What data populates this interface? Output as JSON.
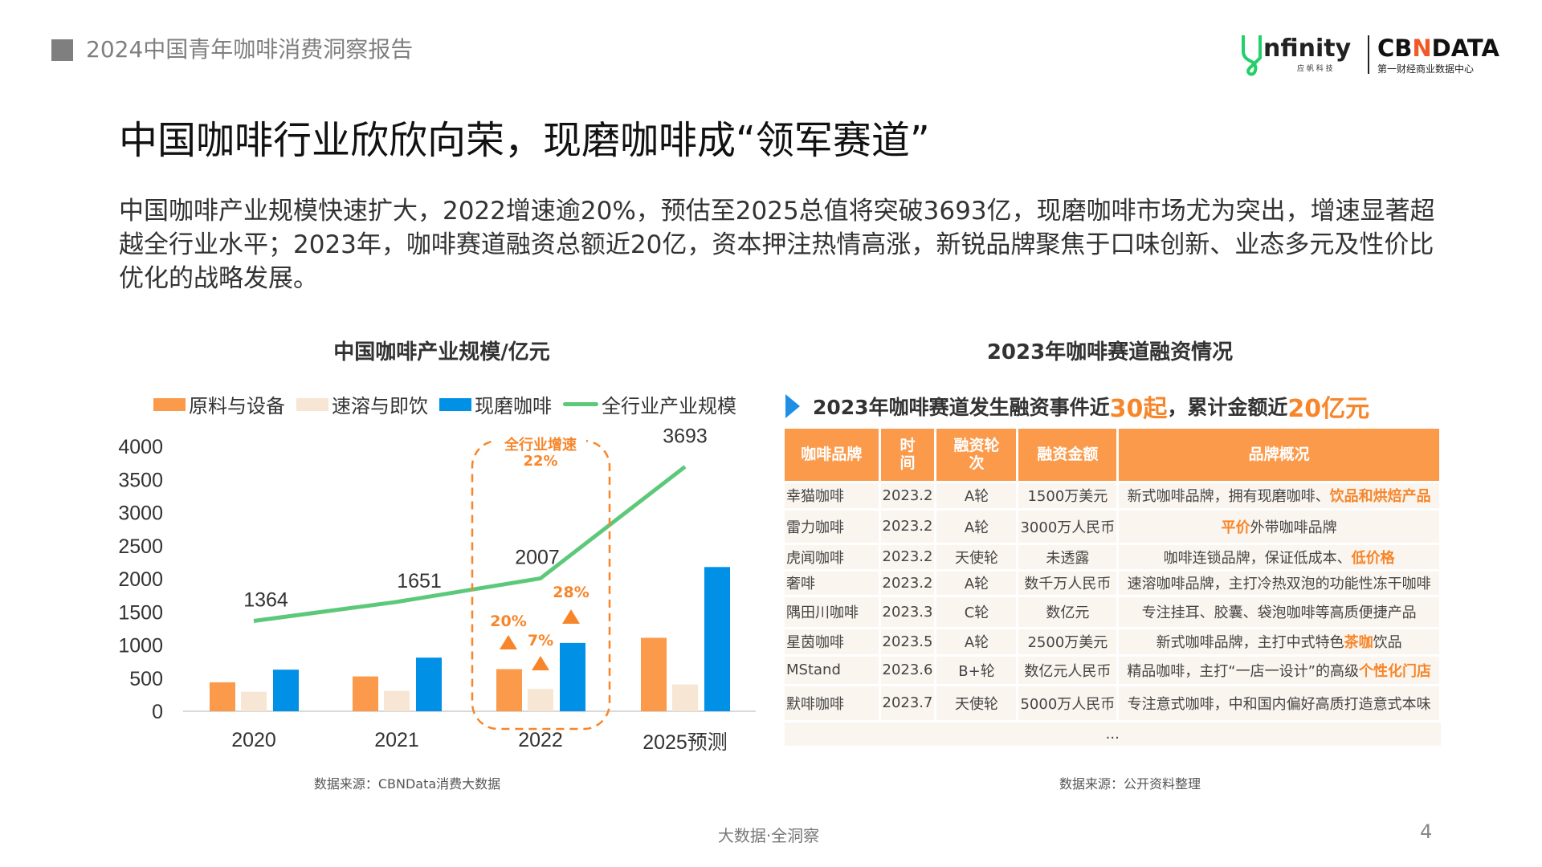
{
  "header": {
    "report_title": "2024中国青年咖啡消费洞察报告"
  },
  "logos": {
    "infinity": "infinity",
    "infinity_cn": "应 帆 科 技",
    "cbndata": "CBNDATA",
    "cbndata_cn": "第一财经商业数据中心"
  },
  "title": "中国咖啡行业欣欣向荣，现磨咖啡成“领军赛道”",
  "paragraph": "中国咖啡产业规模快速扩大，2022增速逾20%，预估至2025总值将突破3693亿，现磨咖啡市场尤为突出，增速显著超越全行业水平；2023年，咖啡赛道融资总额近20亿，资本押注热情高涨，新锐品牌聚焦于口味创新、业态多元及性价比优化的战略发展。",
  "chart_data": {
    "type": "bar",
    "title": "中国咖啡产业规模/亿元",
    "categories": [
      "2020",
      "2021",
      "2022",
      "2025预测"
    ],
    "series": [
      {
        "name": "原料与设备",
        "type": "bar",
        "color": "#fb9a4b",
        "values": [
          437,
          526,
          636,
          1109
        ]
      },
      {
        "name": "速溶与即饮",
        "type": "bar",
        "color": "#f7e6d3",
        "values": [
          295,
          308,
          336,
          405
        ]
      },
      {
        "name": "现磨咖啡",
        "type": "bar",
        "color": "#0090e6",
        "values": [
          628,
          810,
          1032,
          2178
        ]
      },
      {
        "name": "全行业产业规模",
        "type": "line",
        "color": "#5cc97a",
        "values": [
          1364,
          1651,
          2007,
          3693
        ],
        "labels": [
          "1364",
          "1651",
          "2007",
          "3693"
        ]
      }
    ],
    "yticks": [
      "0",
      "500",
      "1000",
      "1500",
      "2000",
      "2500",
      "3000",
      "3500",
      "4000"
    ],
    "ylim": [
      0,
      4000
    ],
    "legend": "top",
    "annotations": {
      "highlight_category": "2022",
      "highlight_title": "全行业增速",
      "highlight_value": "22%",
      "growth": [
        {
          "series": "原料与设备",
          "value": "20%"
        },
        {
          "series": "速溶与即饮",
          "value": "7%"
        },
        {
          "series": "现磨咖啡",
          "value": "28%"
        }
      ]
    },
    "source": "数据来源：CBNData消费大数据"
  },
  "right": {
    "title": "2023年咖啡赛道融资情况",
    "summary_pre": "2023年咖啡赛道发生融资事件近",
    "summary_hl1": "30起",
    "summary_mid": "，累计金额近",
    "summary_hl2": "20亿元",
    "headers": [
      "咖啡品牌",
      "时\n间",
      "融资轮\n次",
      "融资金额",
      "品牌概况"
    ],
    "rows": [
      {
        "brand": "幸猫咖啡",
        "time": "2023.2",
        "round": "A轮",
        "amount": "1500万美元",
        "desc": "新式咖啡品牌，拥有现磨咖啡、",
        "hl": "饮品和烘焙产品",
        "post": ""
      },
      {
        "brand": "雷力咖啡",
        "time": "2023.2",
        "round": "A轮",
        "amount": "3000万人民币",
        "desc": "",
        "hl": "平价",
        "post": "外带咖啡品牌"
      },
      {
        "brand": "虎闻咖啡",
        "time": "2023.2",
        "round": "天使轮",
        "amount": "未透露",
        "desc": "咖啡连锁品牌，保证低成本、",
        "hl": "低价格",
        "post": ""
      },
      {
        "brand": "奢啡",
        "time": "2023.2",
        "round": "A轮",
        "amount": "数千万人民币",
        "desc": "速溶咖啡品牌，主打冷热双泡的功能性冻干咖啡",
        "hl": "",
        "post": ""
      },
      {
        "brand": "隅田川咖啡",
        "time": "2023.3",
        "round": "C轮",
        "amount": "数亿元",
        "desc": "专注挂耳、胶囊、袋泡咖啡等高质便捷产品",
        "hl": "",
        "post": ""
      },
      {
        "brand": "星茵咖啡",
        "time": "2023.5",
        "round": "A轮",
        "amount": "2500万美元",
        "desc": "新式咖啡品牌，主打中式特色",
        "hl": "茶咖",
        "post": "饮品"
      },
      {
        "brand": "MStand",
        "time": "2023.6",
        "round": "B+轮",
        "amount": "数亿元人民币",
        "desc": "精品咖啡，主打“一店一设计”的高级",
        "hl": "个性化门店",
        "post": ""
      },
      {
        "brand": "默啡咖啡",
        "time": "2023.7",
        "round": "天使轮",
        "amount": "5000万人民币",
        "desc": "专注意式咖啡，中和国内偏好高质打造意式本味",
        "hl": "",
        "post": ""
      }
    ],
    "ellipsis": "...",
    "source": "数据来源：公开资料整理"
  },
  "footer": {
    "slogan": "大数据·全洞察",
    "page": "4"
  }
}
